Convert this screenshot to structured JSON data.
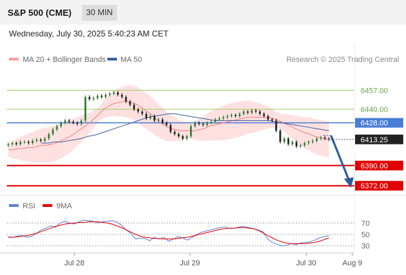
{
  "header": {
    "title": "S&P 500 (CME)",
    "timeframe": "30 MIN",
    "datetime": "Wednesday, July 30, 2025 5:40:23 AM CET"
  },
  "colors": {
    "bollinger_fill": "#ffdcdc",
    "ma20": "#f08080",
    "ma50": "#3a5f9f",
    "candle_up": "#2e7d32",
    "candle_down": "#222222",
    "support": "#e00000",
    "resistance_soft": "#9ccc65",
    "pivot": "#4a7dd6",
    "arrow": "#2d5b9a",
    "rsi": "#5b7fd6",
    "rsi_ma": "#e00000"
  },
  "chart_data": [
    {
      "type": "candlestick",
      "legend": [
        "MA 20 + Bollinger Bands",
        "MA 50"
      ],
      "watermark": "Research © 2025 Trading Central",
      "x_ticks": [
        "Jul 28",
        "Jul 29",
        "Jul 30",
        "Aug 9"
      ],
      "ylim": [
        6366,
        6470
      ],
      "levels": [
        {
          "value": 6457.0,
          "label": "6457.00",
          "kind": "resistance-soft"
        },
        {
          "value": 6440.0,
          "label": "6440.00",
          "kind": "resistance-soft"
        },
        {
          "value": 6428.0,
          "label": "6428.00",
          "kind": "pivot"
        },
        {
          "value": 6413.25,
          "label": "6413.25",
          "kind": "last"
        },
        {
          "value": 6390.0,
          "label": "6390.00",
          "kind": "support"
        },
        {
          "value": 6372.0,
          "label": "6372.00",
          "kind": "support"
        }
      ],
      "close": [
        6409,
        6410,
        6409,
        6411,
        6411,
        6410,
        6412,
        6413,
        6412,
        6414,
        6418,
        6422,
        6425,
        6428,
        6430,
        6429,
        6428,
        6427,
        6430,
        6451,
        6449,
        6450,
        6452,
        6451,
        6453,
        6454,
        6455,
        6453,
        6451,
        6447,
        6444,
        6440,
        6438,
        6436,
        6432,
        6434,
        6430,
        6431,
        6428,
        6426,
        6420,
        6418,
        6416,
        6414,
        6416,
        6425,
        6428,
        6427,
        6426,
        6428,
        6429,
        6431,
        6432,
        6433,
        6434,
        6435,
        6434,
        6436,
        6438,
        6437,
        6439,
        6438,
        6436,
        6434,
        6431,
        6430,
        6421,
        6411,
        6414,
        6409,
        6411,
        6407,
        6408,
        6410,
        6411,
        6412,
        6414,
        6415,
        6414,
        6413.25
      ],
      "ma20": [
        6404,
        6404,
        6405,
        6405,
        6406,
        6406,
        6407,
        6408,
        6408,
        6409,
        6410,
        6412,
        6414,
        6416,
        6419,
        6422,
        6425,
        6428,
        6432,
        6436,
        6440,
        6443,
        6445,
        6446,
        6447,
        6447,
        6446,
        6444,
        6441,
        6438,
        6435,
        6431,
        6428,
        6425,
        6423,
        6422,
        6421,
        6421,
        6421,
        6421,
        6422,
        6423,
        6425,
        6426,
        6427,
        6428,
        6429,
        6430,
        6431,
        6432,
        6433,
        6433,
        6433,
        6433,
        6433,
        6432,
        6431,
        6429,
        6427,
        6425,
        6423,
        6421,
        6419,
        6418,
        6416,
        6415,
        6414,
        6413
      ],
      "ma50": [
        6410,
        6410,
        6411,
        6411,
        6412,
        6413,
        6414,
        6416,
        6417,
        6419,
        6421,
        6423,
        6425,
        6427,
        6429,
        6431,
        6433,
        6434,
        6435,
        6436,
        6436,
        6435,
        6434,
        6433,
        6432,
        6431,
        6430,
        6430,
        6430,
        6430,
        6430,
        6430,
        6430,
        6430,
        6430,
        6429,
        6428,
        6427,
        6426,
        6425,
        6424,
        6423,
        6422,
        6421
      ]
    },
    {
      "type": "line",
      "name": "RSI panel",
      "legend": [
        "RSI",
        "9MA"
      ],
      "y_ticks": [
        "70",
        "50",
        "30"
      ],
      "ylim": [
        20,
        80
      ],
      "rsi": [
        46,
        45,
        47,
        48,
        45,
        47,
        52,
        58,
        61,
        65,
        62,
        70,
        73,
        70,
        68,
        72,
        75,
        74,
        73,
        70,
        72,
        73,
        74,
        72,
        66,
        58,
        52,
        42,
        44,
        43,
        39,
        45,
        42,
        45,
        38,
        42,
        46,
        44,
        40,
        45,
        50,
        54,
        56,
        58,
        60,
        62,
        63,
        60,
        61,
        63,
        64,
        62,
        60,
        58,
        55,
        42,
        36,
        33,
        30,
        31,
        34,
        32,
        35,
        36,
        37,
        40,
        44,
        46,
        48
      ],
      "rsi_ma9": [
        45,
        45,
        46,
        47,
        48,
        50,
        52,
        55,
        58,
        61,
        64,
        66,
        68,
        69,
        70,
        71,
        71,
        72,
        72,
        72,
        71,
        70,
        68,
        65,
        62,
        58,
        54,
        50,
        47,
        45,
        44,
        43,
        43,
        42,
        42,
        42,
        43,
        44,
        45,
        47,
        49,
        51,
        53,
        55,
        57,
        59,
        60,
        61,
        61,
        62,
        62,
        61,
        60,
        57,
        53,
        48,
        44,
        40,
        37,
        35,
        34,
        34,
        34,
        34,
        35,
        36,
        38,
        41,
        44
      ]
    }
  ],
  "series": {
    "last_price": "6413.25"
  }
}
